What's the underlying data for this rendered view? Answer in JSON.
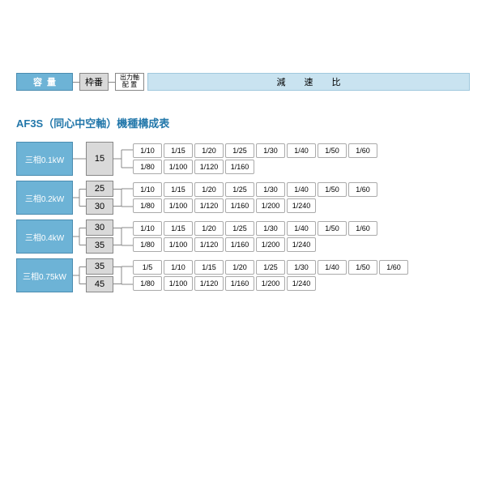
{
  "legend": {
    "capacity": "容量",
    "frame": "枠番",
    "shaft_line1": "出力軸",
    "shaft_line2": "配 置",
    "ratio": "減 速 比"
  },
  "title": "AF3S（同心中空軸）機種構成表",
  "colors": {
    "blue_bg": "#6db3d6",
    "blue_border": "#4a8cb0",
    "light_blue": "#c9e3f0",
    "gray_bg": "#d9d9d9",
    "border": "#888888",
    "title_color": "#2277aa"
  },
  "groups": [
    {
      "capacity": "三相0.1kW",
      "frames": [
        "15"
      ],
      "rows": [
        [
          "1/10",
          "1/15",
          "1/20",
          "1/25",
          "1/30",
          "1/40",
          "1/50",
          "1/60"
        ],
        [
          "1/80",
          "1/100",
          "1/120",
          "1/160"
        ]
      ]
    },
    {
      "capacity": "三相0.2kW",
      "frames": [
        "25",
        "30"
      ],
      "rows": [
        [
          "1/10",
          "1/15",
          "1/20",
          "1/25",
          "1/30",
          "1/40",
          "1/50",
          "1/60"
        ],
        [
          "1/80",
          "1/100",
          "1/120",
          "1/160",
          "1/200",
          "1/240"
        ]
      ]
    },
    {
      "capacity": "三相0.4kW",
      "frames": [
        "30",
        "35"
      ],
      "rows": [
        [
          "1/10",
          "1/15",
          "1/20",
          "1/25",
          "1/30",
          "1/40",
          "1/50",
          "1/60"
        ],
        [
          "1/80",
          "1/100",
          "1/120",
          "1/160",
          "1/200",
          "1/240"
        ]
      ]
    },
    {
      "capacity": "三相0.75kW",
      "frames": [
        "35",
        "45"
      ],
      "rows": [
        [
          "1/5",
          "1/10",
          "1/15",
          "1/20",
          "1/25",
          "1/30",
          "1/40",
          "1/50",
          "1/60"
        ],
        [
          "1/80",
          "1/100",
          "1/120",
          "1/160",
          "1/200",
          "1/240"
        ]
      ]
    }
  ]
}
